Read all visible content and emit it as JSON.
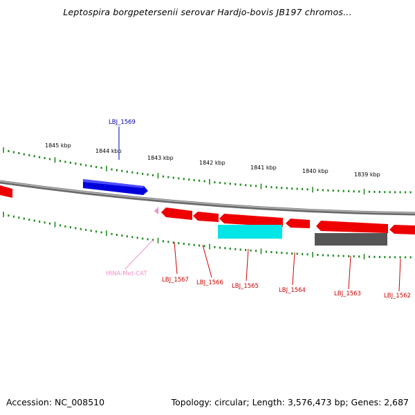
{
  "title": "Leptospira borgpetersenii serovar Hardjo-bovis JB197 chromos...",
  "ruler_labels": [
    "1845 kbp",
    "1844 kbp",
    "1843 kbp",
    "1842 kbp",
    "1841 kbp",
    "1840 kbp",
    "1839 kbp"
  ],
  "genes": {
    "LBJ_1569": "LBJ_1569",
    "trna": "tRNA-Met-CAT",
    "LBJ_1567": "LBJ_1567",
    "LBJ_1566": "LBJ_1566",
    "LBJ_1565": "LBJ_1565",
    "LBJ_1564": "LBJ_1564",
    "LBJ_1563": "LBJ_1563",
    "LBJ_1562": "LBJ_1562"
  },
  "colors": {
    "forward_gene": "#0000dd",
    "reverse_gene": "#ee0000",
    "highlight_gene": "#00e5e5",
    "gray_gene": "#555555",
    "trna": "#f090c8",
    "tick": "#1f8a1f",
    "backbone": "#888888"
  },
  "footer": {
    "accession": "Accession: NC_008510",
    "topology": "Topology: circular; Length: 3,576,473 bp; Genes: 2,687"
  }
}
